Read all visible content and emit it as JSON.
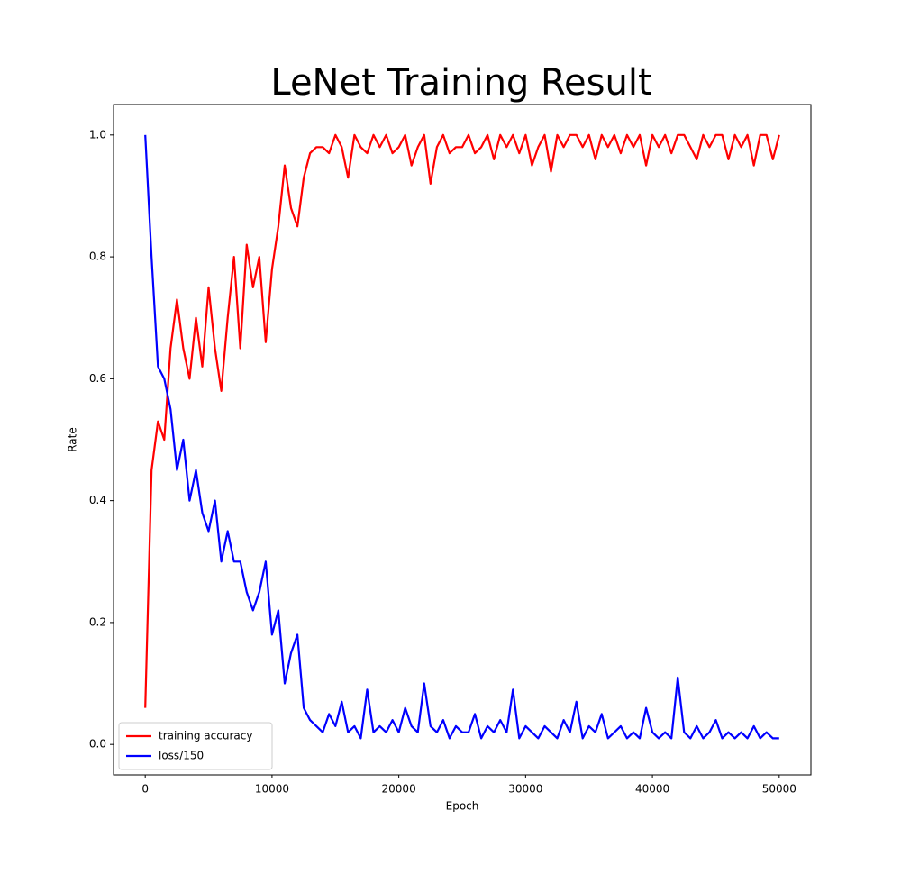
{
  "chart_data": {
    "type": "line",
    "title": "LeNet Training Result",
    "xlabel": "Epoch",
    "ylabel": "Rate",
    "x": [
      0,
      500,
      1000,
      1500,
      2000,
      2500,
      3000,
      3500,
      4000,
      4500,
      5000,
      5500,
      6000,
      6500,
      7000,
      7500,
      8000,
      8500,
      9000,
      9500,
      10000,
      10500,
      11000,
      11500,
      12000,
      12500,
      13000,
      13500,
      14000,
      14500,
      15000,
      15500,
      16000,
      16500,
      17000,
      17500,
      18000,
      18500,
      19000,
      19500,
      20000,
      20500,
      21000,
      21500,
      22000,
      22500,
      23000,
      23500,
      24000,
      24500,
      25000,
      25500,
      26000,
      26500,
      27000,
      27500,
      28000,
      28500,
      29000,
      29500,
      30000,
      30500,
      31000,
      31500,
      32000,
      32500,
      33000,
      33500,
      34000,
      34500,
      35000,
      35500,
      36000,
      36500,
      37000,
      37500,
      38000,
      38500,
      39000,
      39500,
      40000,
      40500,
      41000,
      41500,
      42000,
      42500,
      43000,
      43500,
      44000,
      44500,
      45000,
      45500,
      46000,
      46500,
      47000,
      47500,
      48000,
      48500,
      49000,
      49500,
      50000
    ],
    "series": [
      {
        "name": "training accuracy",
        "color": "#ff0000",
        "values": [
          0.06,
          0.45,
          0.53,
          0.5,
          0.65,
          0.73,
          0.65,
          0.6,
          0.7,
          0.62,
          0.75,
          0.65,
          0.58,
          0.7,
          0.8,
          0.65,
          0.82,
          0.75,
          0.8,
          0.66,
          0.78,
          0.85,
          0.95,
          0.88,
          0.85,
          0.93,
          0.97,
          0.98,
          0.98,
          0.97,
          1.0,
          0.98,
          0.93,
          1.0,
          0.98,
          0.97,
          1.0,
          0.98,
          1.0,
          0.97,
          0.98,
          1.0,
          0.95,
          0.98,
          1.0,
          0.92,
          0.98,
          1.0,
          0.97,
          0.98,
          0.98,
          1.0,
          0.97,
          0.98,
          1.0,
          0.96,
          1.0,
          0.98,
          1.0,
          0.97,
          1.0,
          0.95,
          0.98,
          1.0,
          0.94,
          1.0,
          0.98,
          1.0,
          1.0,
          0.98,
          1.0,
          0.96,
          1.0,
          0.98,
          1.0,
          0.97,
          1.0,
          0.98,
          1.0,
          0.95,
          1.0,
          0.98,
          1.0,
          0.97,
          1.0,
          1.0,
          0.98,
          0.96,
          1.0,
          0.98,
          1.0,
          1.0,
          0.96,
          1.0,
          0.98,
          1.0,
          0.95,
          1.0,
          1.0,
          0.96,
          1.0
        ]
      },
      {
        "name": "loss/150",
        "color": "#0000ff",
        "values": [
          1.0,
          0.8,
          0.62,
          0.6,
          0.55,
          0.45,
          0.5,
          0.4,
          0.45,
          0.38,
          0.35,
          0.4,
          0.3,
          0.35,
          0.3,
          0.3,
          0.25,
          0.22,
          0.25,
          0.3,
          0.18,
          0.22,
          0.1,
          0.15,
          0.18,
          0.06,
          0.04,
          0.03,
          0.02,
          0.05,
          0.03,
          0.07,
          0.02,
          0.03,
          0.01,
          0.09,
          0.02,
          0.03,
          0.02,
          0.04,
          0.02,
          0.06,
          0.03,
          0.02,
          0.1,
          0.03,
          0.02,
          0.04,
          0.01,
          0.03,
          0.02,
          0.02,
          0.05,
          0.01,
          0.03,
          0.02,
          0.04,
          0.02,
          0.09,
          0.01,
          0.03,
          0.02,
          0.01,
          0.03,
          0.02,
          0.01,
          0.04,
          0.02,
          0.07,
          0.01,
          0.03,
          0.02,
          0.05,
          0.01,
          0.02,
          0.03,
          0.01,
          0.02,
          0.01,
          0.06,
          0.02,
          0.01,
          0.02,
          0.01,
          0.11,
          0.02,
          0.01,
          0.03,
          0.01,
          0.02,
          0.04,
          0.01,
          0.02,
          0.01,
          0.02,
          0.01,
          0.03,
          0.01,
          0.02,
          0.01,
          0.01
        ]
      }
    ],
    "xlim": [
      -2500,
      52500
    ],
    "xticks": [
      0,
      10000,
      20000,
      30000,
      40000,
      50000
    ],
    "ylim": [
      -0.05,
      1.05
    ],
    "yticks": [
      {
        "value": 0,
        "label": "0.0"
      },
      0.2,
      0.4,
      0.6,
      0.8,
      {
        "value": 1,
        "label": "1.0"
      }
    ],
    "legend": "lower left"
  }
}
